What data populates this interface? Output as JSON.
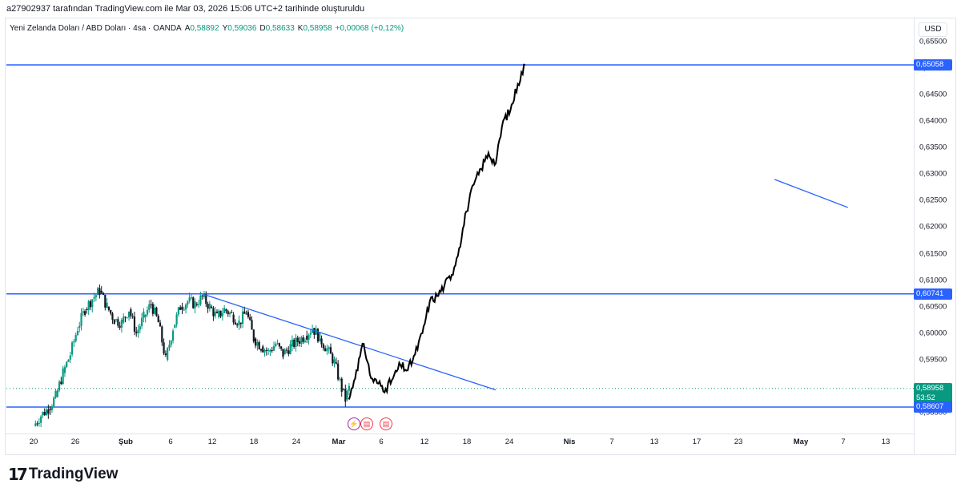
{
  "attribution": "a27902937 tarafından TradingView.com ile Mar 03, 2026 15:06 UTC+2 tarihinde oluşturuldu",
  "legend": {
    "symbol": "Yeni Zelanda Doları / ABD Doları · 4sa · OANDA",
    "open_key": "A",
    "open": "0,58892",
    "high_key": "Y",
    "high": "0,59036",
    "low_key": "D",
    "low": "0,58633",
    "close_key": "K",
    "close": "0,58958",
    "change": "+0,00068 (+0,12%)"
  },
  "currency": "USD",
  "price_labels": {
    "top_level": "0,65058",
    "mid_level": "0,60741",
    "last_price": "0,58958",
    "countdown": "53:52",
    "bottom_level": "0,58607"
  },
  "logo_text": "TradingView",
  "icons": {
    "logo": "tradingview-logo-icon",
    "event1": "flash-icon",
    "event2": "us-flag-icon",
    "event3": "us-flag-icon"
  },
  "colors": {
    "level_line": "#2962ff",
    "trend_line": "#2962ff",
    "candle_up": "#089981",
    "candle_down": "#131722",
    "projection": "#000000",
    "last_price_bg": "#089981"
  },
  "chart_data": {
    "type": "candlestick",
    "symbol": "NZDUSD",
    "interval": "4sa",
    "y_ticks": [
      "0,65500",
      "0,65000",
      "0,64500",
      "0,64000",
      "0,63500",
      "0,63000",
      "0,62500",
      "0,62000",
      "0,61500",
      "0,61000",
      "0,60500",
      "0,60000",
      "0,59500",
      "0,59000",
      "0,58500"
    ],
    "x_ticks": [
      "20",
      "26",
      "Şub",
      "6",
      "12",
      "18",
      "24",
      "Mar",
      "6",
      "12",
      "18",
      "24",
      "Nis",
      "7",
      "13",
      "17",
      "23",
      "May",
      "7",
      "13"
    ],
    "ylim": [
      0.5805,
      0.6565
    ],
    "horizontal_levels": [
      0.65058,
      0.60741,
      0.58607
    ],
    "last_price": 0.58958,
    "price_history": [
      [
        0,
        0.5825
      ],
      [
        2,
        0.5845
      ],
      [
        4,
        0.5858
      ],
      [
        6,
        0.588
      ],
      [
        8,
        0.5925
      ],
      [
        10,
        0.596
      ],
      [
        12,
        0.601
      ],
      [
        14,
        0.6045
      ],
      [
        16,
        0.6065
      ],
      [
        18,
        0.608
      ],
      [
        20,
        0.605
      ],
      [
        22,
        0.6025
      ],
      [
        24,
        0.602
      ],
      [
        26,
        0.6045
      ],
      [
        28,
        0.6
      ],
      [
        30,
        0.603
      ],
      [
        32,
        0.6055
      ],
      [
        34,
        0.602
      ],
      [
        36,
        0.595
      ],
      [
        38,
        0.601
      ],
      [
        40,
        0.605
      ],
      [
        42,
        0.606
      ],
      [
        44,
        0.6055
      ],
      [
        46,
        0.6068
      ],
      [
        48,
        0.605
      ],
      [
        50,
        0.603
      ],
      [
        52,
        0.6045
      ],
      [
        54,
        0.6035
      ],
      [
        56,
        0.602
      ],
      [
        58,
        0.604
      ],
      [
        60,
        0.599
      ],
      [
        62,
        0.5975
      ],
      [
        64,
        0.5965
      ],
      [
        66,
        0.598
      ],
      [
        68,
        0.596
      ],
      [
        70,
        0.5975
      ],
      [
        72,
        0.5985
      ],
      [
        74,
        0.5995
      ],
      [
        76,
        0.601
      ],
      [
        78,
        0.599
      ],
      [
        80,
        0.597
      ],
      [
        82,
        0.5945
      ],
      [
        84,
        0.5895
      ],
      [
        85,
        0.5875
      ],
      [
        86,
        0.5896
      ]
    ],
    "projection_path": [
      [
        86,
        0.5875
      ],
      [
        88,
        0.593
      ],
      [
        90,
        0.598
      ],
      [
        92,
        0.5915
      ],
      [
        94,
        0.5905
      ],
      [
        96,
        0.5895
      ],
      [
        98,
        0.5915
      ],
      [
        100,
        0.594
      ],
      [
        102,
        0.593
      ],
      [
        104,
        0.596
      ],
      [
        106,
        0.6
      ],
      [
        108,
        0.606
      ],
      [
        110,
        0.607
      ],
      [
        112,
        0.609
      ],
      [
        114,
        0.611
      ],
      [
        116,
        0.616
      ],
      [
        118,
        0.623
      ],
      [
        120,
        0.628
      ],
      [
        122,
        0.631
      ],
      [
        124,
        0.634
      ],
      [
        126,
        0.632
      ],
      [
        128,
        0.64
      ],
      [
        130,
        0.642
      ],
      [
        132,
        0.647
      ],
      [
        134,
        0.6506
      ]
    ],
    "trendlines": [
      {
        "from": [
          46,
          0.6074
        ],
        "to": [
          126,
          0.5893
        ]
      },
      {
        "from": [
          202,
          0.629
        ],
        "to": [
          222,
          0.6237
        ]
      }
    ]
  }
}
